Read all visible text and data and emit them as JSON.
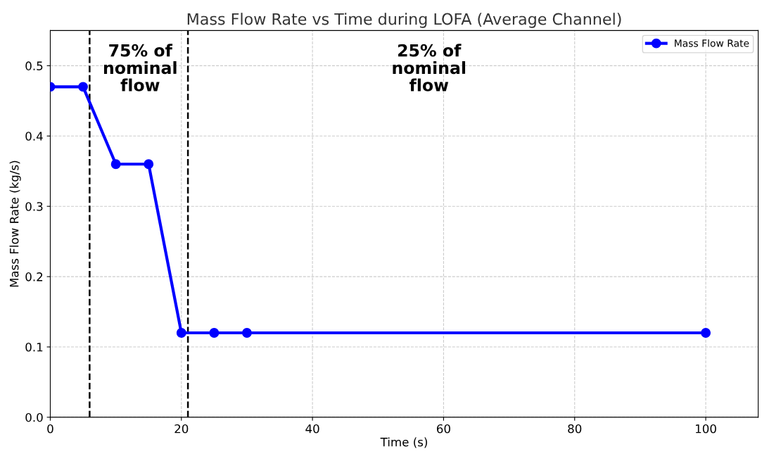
{
  "chart_data": {
    "type": "line",
    "title": "Mass Flow Rate vs Time during LOFA (Average Channel)",
    "xlabel": "Time (s)",
    "ylabel": "Mass Flow Rate (kg/s)",
    "x": [
      0,
      5,
      10,
      15,
      20,
      25,
      30,
      100
    ],
    "series": [
      {
        "name": "Mass Flow Rate",
        "color": "#0000ff",
        "values": [
          0.47,
          0.47,
          0.36,
          0.36,
          0.12,
          0.12,
          0.12,
          0.12
        ]
      }
    ],
    "xlim": [
      0,
      108
    ],
    "ylim": [
      0,
      0.55
    ],
    "xticks": [
      0,
      20,
      40,
      60,
      80,
      100
    ],
    "yticks": [
      {
        "value": 0,
        "label": "0.0"
      },
      0.1,
      0.2,
      0.3,
      0.4,
      0.5
    ],
    "ref_lines": [
      {
        "axis": "x",
        "value": 6,
        "color": "#000000",
        "line_style": "dashed"
      },
      {
        "axis": "x",
        "value": 21,
        "color": "#000000",
        "line_style": "dashed"
      }
    ],
    "annotations": [
      "75% of\nnominal\nflow",
      "25% of\nnominal\nflow"
    ],
    "grid": true,
    "legend": "top right",
    "marker": "circle",
    "line_style": "solid"
  }
}
